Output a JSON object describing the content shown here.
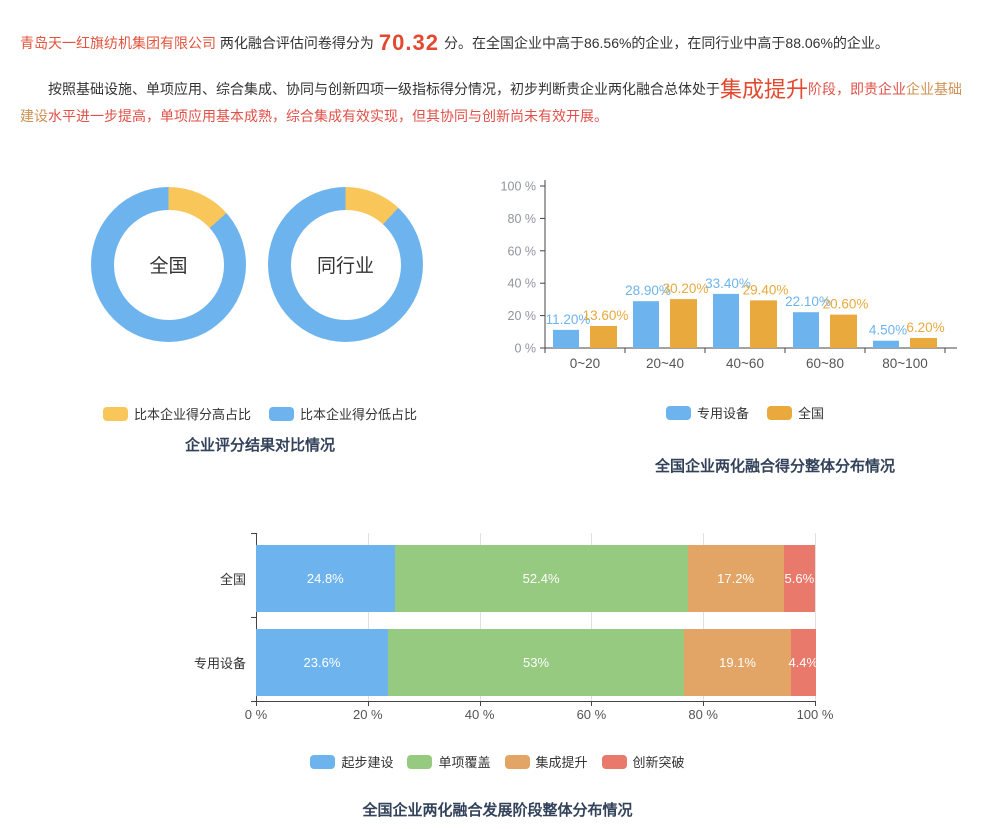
{
  "report": {
    "line1": {
      "company": "青岛天一红旗纺机集团有限公司",
      "text_before_score": "两化融合评估问卷得分为",
      "score": "70.32",
      "text_after_score": "分。在全国企业中高于86.56%的企业，在同行业中高于88.06%的企业。"
    },
    "line2": {
      "lead": "按照基础设施、单项应用、综合集成、协同与创新四项一级指标得分情况，初步判断贵企业两化融合总体处于",
      "stage": "集成提升",
      "after_stage": "阶段，即贵企业",
      "keyword": "企业基础建设",
      "tail": "水平进一步提高，单项应用基本成熟，综合集成有效实现，但其协同与创新尚未有效开展。"
    }
  },
  "accents": {
    "company_color": "#e2543c",
    "score_color": "#e2492f",
    "stage_color": "#e2492f",
    "red_text": "#e05048",
    "keyword_color": "#cf9152",
    "body_text": "#333333"
  },
  "chart_data": [
    {
      "type": "pie",
      "subtype": "double-donut",
      "title": "企业评分结果对比情况",
      "legend_position": "bottom",
      "legend": [
        {
          "label": "比本企业得分高占比",
          "color": "#f9c65a"
        },
        {
          "label": "比本企业得分低占比",
          "color": "#6db4ee"
        }
      ],
      "donuts": [
        {
          "label": "全国",
          "higher_pct": 13.44,
          "lower_pct": 86.56
        },
        {
          "label": "同行业",
          "higher_pct": 11.94,
          "lower_pct": 88.06
        }
      ]
    },
    {
      "type": "bar",
      "title": "全国企业两化融合得分整体分布情况",
      "categories": [
        "0~20",
        "20~40",
        "40~60",
        "60~80",
        "80~100"
      ],
      "series": [
        {
          "name": "专用设备",
          "color": "#6db4ee",
          "values": [
            11.2,
            28.9,
            33.4,
            22.1,
            4.5
          ],
          "labels": [
            "11.20%",
            "28.90%",
            "33.40%",
            "22.10%",
            "4.50%"
          ]
        },
        {
          "name": "全国",
          "color": "#e9a93d",
          "values": [
            13.6,
            30.2,
            29.4,
            20.6,
            6.2
          ],
          "labels": [
            "13.60%",
            "30.20%",
            "29.40%",
            "20.60%",
            "6.20%"
          ]
        }
      ],
      "ylim": [
        0,
        100
      ],
      "yticks": [
        "0 %",
        "20 %",
        "40 %",
        "60 %",
        "80 %",
        "100 %"
      ],
      "grid": false,
      "legend_position": "bottom"
    },
    {
      "type": "bar",
      "orientation": "horizontal-stacked",
      "title": "全国企业两化融合发展阶段整体分布情况",
      "categories": [
        "全国",
        "专用设备"
      ],
      "series": [
        {
          "name": "起步建设",
          "color": "#6db4ee",
          "values": [
            24.8,
            23.6
          ],
          "labels": [
            "24.8%",
            "23.6%"
          ]
        },
        {
          "name": "单项覆盖",
          "color": "#95ca80",
          "values": [
            52.4,
            53
          ],
          "labels": [
            "52.4%",
            "53%"
          ]
        },
        {
          "name": "集成提升",
          "color": "#e2a566",
          "values": [
            17.2,
            19.1
          ],
          "labels": [
            "17.2%",
            "19.1%"
          ]
        },
        {
          "name": "创新突破",
          "color": "#e8796b",
          "values": [
            5.6,
            4.4
          ],
          "labels": [
            "5.6%",
            "4.4%"
          ]
        }
      ],
      "xlim": [
        0,
        100
      ],
      "xticks": [
        "0 %",
        "20 %",
        "40 %",
        "60 %",
        "80 %",
        "100 %"
      ],
      "grid": true,
      "legend_position": "bottom"
    }
  ]
}
